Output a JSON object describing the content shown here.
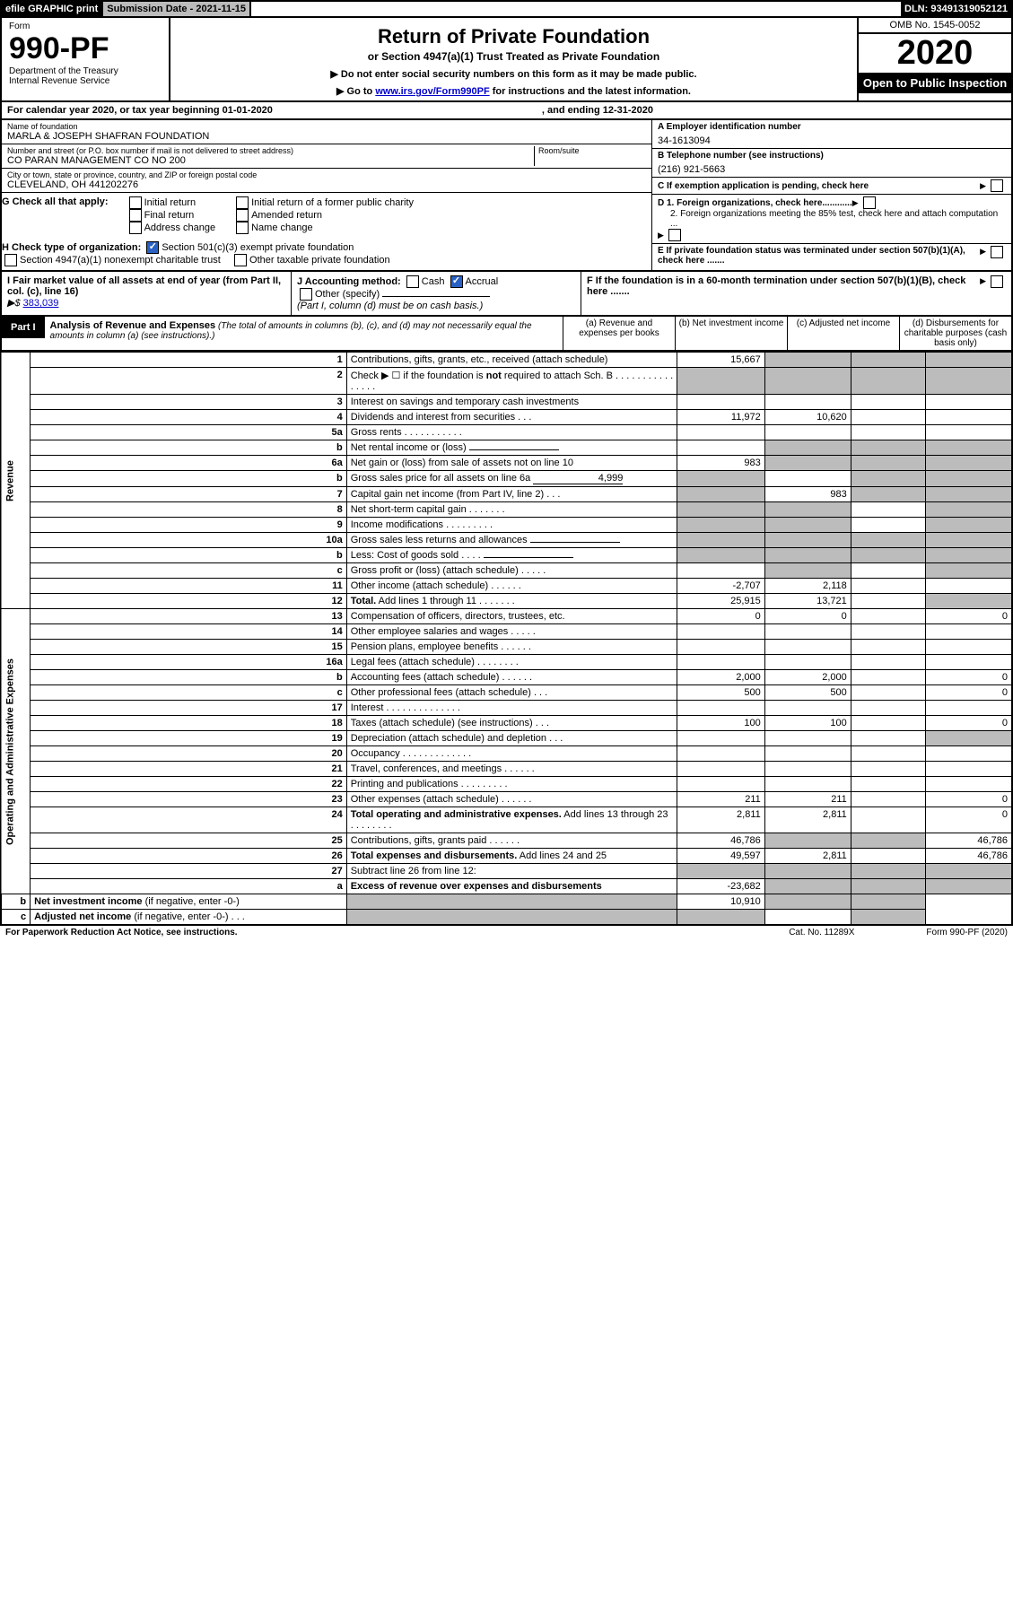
{
  "topbar": {
    "efile": "efile GRAPHIC print",
    "subdate_lbl": "Submission Date - ",
    "subdate": "2021-11-15",
    "dln_lbl": "DLN: ",
    "dln": "93491319052121"
  },
  "head": {
    "form_lbl": "Form",
    "formno": "990-PF",
    "dept": "Department of the Treasury",
    "irs": "Internal Revenue Service",
    "title": "Return of Private Foundation",
    "subtitle": "or Section 4947(a)(1) Trust Treated as Private Foundation",
    "note1": "▶ Do not enter social security numbers on this form as it may be made public.",
    "note2": "▶ Go to ",
    "note2_link": "www.irs.gov/Form990PF",
    "note2_after": " for instructions and the latest information.",
    "omb": "OMB No. 1545-0052",
    "year": "2020",
    "open": "Open to Public Inspection"
  },
  "cal": {
    "a": "For calendar year 2020, or tax year beginning 01-01-2020",
    "b": ", and ending 12-31-2020"
  },
  "id": {
    "name_lbl": "Name of foundation",
    "name": "MARLA & JOSEPH SHAFRAN FOUNDATION",
    "addr_lbl": "Number and street (or P.O. box number if mail is not delivered to street address)",
    "room_lbl": "Room/suite",
    "addr": "CO PARAN MANAGEMENT CO NO 200",
    "city_lbl": "City or town, state or province, country, and ZIP or foreign postal code",
    "city": "CLEVELAND, OH  441202276",
    "a_lbl": "A Employer identification number",
    "a": "34-1613094",
    "b_lbl": "B Telephone number (see instructions)",
    "b": "(216) 921-5663",
    "c_lbl": "C If exemption application is pending, check here",
    "d1": "D 1. Foreign organizations, check here............",
    "d2": "2. Foreign organizations meeting the 85% test, check here and attach computation ...",
    "e": "E  If private foundation status was terminated under section 507(b)(1)(A), check here .......",
    "f": "F  If the foundation is in a 60-month termination under section 507(b)(1)(B), check here ......."
  },
  "g": {
    "lbl": "G Check all that apply:",
    "opts": [
      "Initial return",
      "Final return",
      "Address change",
      "Initial return of a former public charity",
      "Amended return",
      "Name change"
    ]
  },
  "h": {
    "lbl": "H Check type of organization:",
    "opt1": "Section 501(c)(3) exempt private foundation",
    "opt2": "Section 4947(a)(1) nonexempt charitable trust",
    "opt3": "Other taxable private foundation"
  },
  "i": {
    "lbl": "I Fair market value of all assets at end of year (from Part II, col. (c), line 16)",
    "arrow": "▶$",
    "val": "383,039"
  },
  "j": {
    "lbl": "J Accounting method:",
    "cash": "Cash",
    "accrual": "Accrual",
    "other": "Other (specify)",
    "note": "(Part I, column (d) must be on cash basis.)"
  },
  "part1": {
    "tab": "Part I",
    "title": "Analysis of Revenue and Expenses",
    "note": "(The total of amounts in columns (b), (c), and (d) may not necessarily equal the amounts in column (a) (see instructions).)",
    "cols": [
      "(a) Revenue and expenses per books",
      "(b) Net investment income",
      "(c) Adjusted net income",
      "(d) Disbursements for charitable purposes (cash basis only)"
    ]
  },
  "sidelabels": {
    "rev": "Revenue",
    "oae": "Operating and Administrative Expenses"
  },
  "rows": [
    {
      "n": "1",
      "l": "Contributions, gifts, grants, etc., received (attach schedule)",
      "a": "15,667",
      "s": [
        0,
        1,
        1,
        1
      ]
    },
    {
      "n": "2",
      "l": "Check ▶ ☐ if the foundation is <b>not</b> required to attach Sch. B   .  .  .  .  .  .  .  .  .  .  .  .  .  .  .  .",
      "s": [
        1,
        1,
        1,
        1
      ]
    },
    {
      "n": "3",
      "l": "Interest on savings and temporary cash investments"
    },
    {
      "n": "4",
      "l": "Dividends and interest from securities   .   .   .",
      "a": "11,972",
      "b": "10,620"
    },
    {
      "n": "5a",
      "l": "Gross rents   .   .   .   .   .   .   .   .   .   .   ."
    },
    {
      "n": "b",
      "l": "Net rental income or (loss)",
      "s": [
        0,
        1,
        1,
        1
      ],
      "inline": true
    },
    {
      "n": "6a",
      "l": "Net gain or (loss) from sale of assets not on line 10",
      "a": "983",
      "s": [
        0,
        1,
        1,
        1
      ]
    },
    {
      "n": "b",
      "l": "Gross sales price for all assets on line 6a",
      "inline": true,
      "ival": "4,999",
      "s": [
        1,
        0,
        1,
        1
      ]
    },
    {
      "n": "7",
      "l": "Capital gain net income (from Part IV, line 2)   .   .   .",
      "b": "983",
      "s": [
        1,
        0,
        1,
        1
      ]
    },
    {
      "n": "8",
      "l": "Net short-term capital gain   .   .   .   .   .   .   .",
      "s": [
        1,
        1,
        0,
        1
      ]
    },
    {
      "n": "9",
      "l": "Income modifications .   .   .   .   .   .   .   .   .",
      "s": [
        1,
        1,
        0,
        1
      ]
    },
    {
      "n": "10a",
      "l": "Gross sales less returns and allowances",
      "inline": true,
      "s": [
        1,
        1,
        1,
        1
      ]
    },
    {
      "n": "b",
      "l": "Less: Cost of goods sold   .   .   .   .",
      "inline": true,
      "s": [
        1,
        1,
        1,
        1
      ]
    },
    {
      "n": "c",
      "l": "Gross profit or (loss) (attach schedule)   .   .   .   .   .",
      "s": [
        0,
        1,
        0,
        1
      ]
    },
    {
      "n": "11",
      "l": "Other income (attach schedule)   .   .   .   .   .   .",
      "a": "-2,707",
      "b": "2,118"
    },
    {
      "n": "12",
      "l": "<b>Total.</b> Add lines 1 through 11   .   .   .   .   .   .   .",
      "a": "25,915",
      "b": "13,721",
      "s": [
        0,
        0,
        0,
        1
      ]
    },
    {
      "n": "13",
      "l": "Compensation of officers, directors, trustees, etc.",
      "a": "0",
      "b": "0",
      "d": "0"
    },
    {
      "n": "14",
      "l": "Other employee salaries and wages   .   .   .   .   ."
    },
    {
      "n": "15",
      "l": "Pension plans, employee benefits   .   .   .   .   .   ."
    },
    {
      "n": "16a",
      "l": "Legal fees (attach schedule) .   .   .   .   .   .   .   ."
    },
    {
      "n": "b",
      "l": "Accounting fees (attach schedule)  .   .   .   .   .   .",
      "a": "2,000",
      "b": "2,000",
      "d": "0"
    },
    {
      "n": "c",
      "l": "Other professional fees (attach schedule)   .   .   .",
      "a": "500",
      "b": "500",
      "d": "0"
    },
    {
      "n": "17",
      "l": "Interest .   .   .   .   .   .   .   .   .   .   .   .   .   ."
    },
    {
      "n": "18",
      "l": "Taxes (attach schedule) (see instructions)   .   .   .",
      "a": "100",
      "b": "100",
      "d": "0"
    },
    {
      "n": "19",
      "l": "Depreciation (attach schedule) and depletion   .   .   .",
      "s": [
        0,
        0,
        0,
        1
      ]
    },
    {
      "n": "20",
      "l": "Occupancy .   .   .   .   .   .   .   .   .   .   .   .   ."
    },
    {
      "n": "21",
      "l": "Travel, conferences, and meetings .   .   .   .   .   ."
    },
    {
      "n": "22",
      "l": "Printing and publications .   .   .   .   .   .   .   .   ."
    },
    {
      "n": "23",
      "l": "Other expenses (attach schedule)  .   .   .   .   .   .",
      "a": "211",
      "b": "211",
      "d": "0"
    },
    {
      "n": "24",
      "l": "<b>Total operating and administrative expenses.</b> Add lines 13 through 23   .   .   .   .   .   .   .   .",
      "a": "2,811",
      "b": "2,811",
      "d": "0"
    },
    {
      "n": "25",
      "l": "Contributions, gifts, grants paid   .   .   .   .   .   .",
      "a": "46,786",
      "s": [
        0,
        1,
        1,
        0
      ],
      "d": "46,786"
    },
    {
      "n": "26",
      "l": "<b>Total expenses and disbursements.</b> Add lines 24 and 25",
      "a": "49,597",
      "b": "2,811",
      "d": "46,786"
    },
    {
      "n": "27",
      "l": "Subtract line 26 from line 12:",
      "s": [
        1,
        1,
        1,
        1
      ]
    },
    {
      "n": "a",
      "l": "<b>Excess of revenue over expenses and disbursements</b>",
      "a": "-23,682",
      "s": [
        0,
        1,
        1,
        1
      ]
    },
    {
      "n": "b",
      "l": "<b>Net investment income</b> (if negative, enter -0-)",
      "b": "10,910",
      "s": [
        1,
        0,
        1,
        1
      ]
    },
    {
      "n": "c",
      "l": "<b>Adjusted net income</b> (if negative, enter -0-)   .   .   .",
      "s": [
        1,
        1,
        0,
        1
      ]
    }
  ],
  "footer": {
    "a": "For Paperwork Reduction Act Notice, see instructions.",
    "b": "Cat. No. 11289X",
    "c": "Form 990-PF (2020)"
  }
}
